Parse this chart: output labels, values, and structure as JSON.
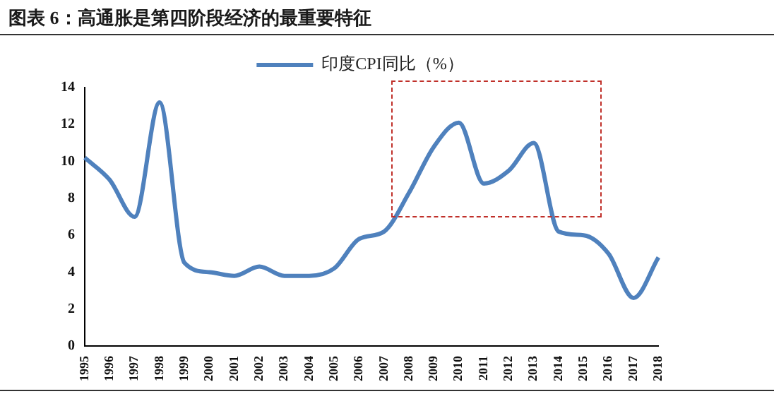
{
  "chart_data": {
    "type": "line",
    "title": "图表 6：高通胀是第四阶段经济的最重要特征",
    "categories": [
      "1995",
      "1996",
      "1997",
      "1998",
      "1999",
      "2000",
      "2001",
      "2002",
      "2003",
      "2004",
      "2005",
      "2006",
      "2007",
      "2008",
      "2009",
      "2010",
      "2011",
      "2012",
      "2013",
      "2014",
      "2015",
      "2016",
      "2017",
      "2018"
    ],
    "series": [
      {
        "name": "印度CPI同比（%）",
        "color": "#4f81bd",
        "values": [
          10.2,
          9.0,
          7.0,
          13.2,
          4.5,
          4.0,
          3.8,
          4.3,
          3.8,
          3.8,
          4.2,
          5.8,
          6.2,
          8.3,
          10.8,
          12.1,
          8.8,
          9.5,
          11.0,
          6.2,
          6.0,
          5.0,
          2.6,
          4.8
        ]
      }
    ],
    "ylim": [
      0,
      14
    ],
    "yticks": [
      0,
      2,
      4,
      6,
      8,
      10,
      12,
      14
    ],
    "grid": false,
    "legend": "top",
    "marker": "none",
    "line_style": "solid"
  }
}
